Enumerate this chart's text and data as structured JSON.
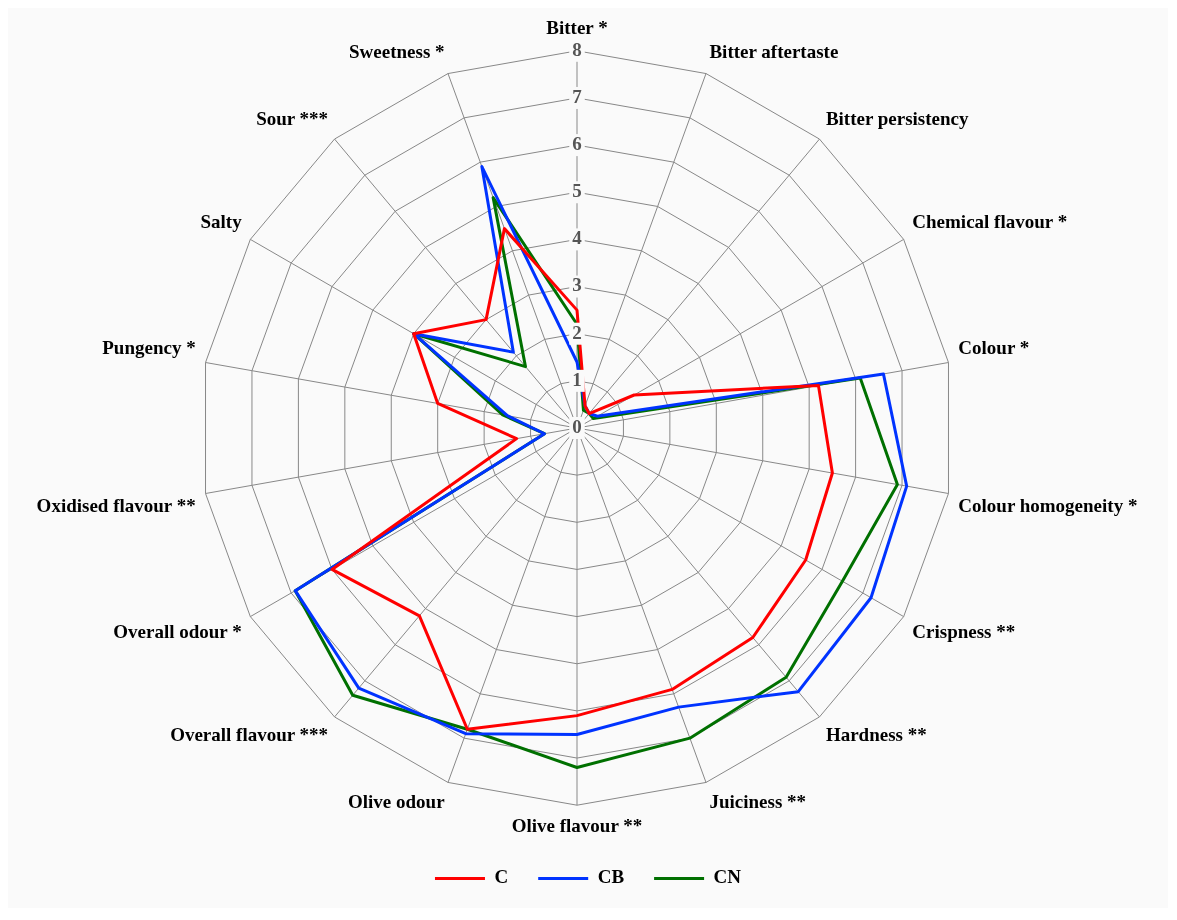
{
  "chart_data": {
    "type": "radar",
    "categories": [
      "Bitter *",
      "Bitter aftertaste",
      "Bitter persistency",
      "Chemical flavour *",
      "Colour *",
      "Colour homogeneity *",
      "Crispness **",
      "Hardness **",
      "Juiciness **",
      "Olive flavour **",
      "Olive odour",
      "Overall flavour ***",
      "Overall odour *",
      "Oxidised flavour **",
      "Pungency *",
      "Salty",
      "Sour ***",
      "Sweetness *"
    ],
    "series": [
      {
        "name": "C",
        "color": "#ff0000",
        "values": [
          2.5,
          0.5,
          0.4,
          1.4,
          5.2,
          5.5,
          5.6,
          5.8,
          5.9,
          6.1,
          6.8,
          5.2,
          6.0,
          1.3,
          3.0,
          4.0,
          3.0,
          4.5
        ]
      },
      {
        "name": "CB",
        "color": "#0033ff",
        "values": [
          1.4,
          0.5,
          0.4,
          0.5,
          6.6,
          7.1,
          7.2,
          7.3,
          6.3,
          6.5,
          6.9,
          7.2,
          6.9,
          0.7,
          1.5,
          4.0,
          2.1,
          5.9
        ]
      },
      {
        "name": "CN",
        "color": "#007000",
        "values": [
          2.2,
          0.4,
          0.4,
          0.4,
          6.1,
          6.9,
          6.5,
          6.9,
          7.0,
          7.2,
          6.8,
          7.4,
          6.9,
          0.7,
          1.6,
          4.0,
          1.7,
          5.2
        ]
      }
    ],
    "ylim": [
      0,
      8
    ],
    "yticks": [
      0,
      1,
      2,
      3,
      4,
      5,
      6,
      7,
      8
    ],
    "grid": true,
    "legend": "bottom",
    "marker": "none",
    "line_style": "solid"
  }
}
